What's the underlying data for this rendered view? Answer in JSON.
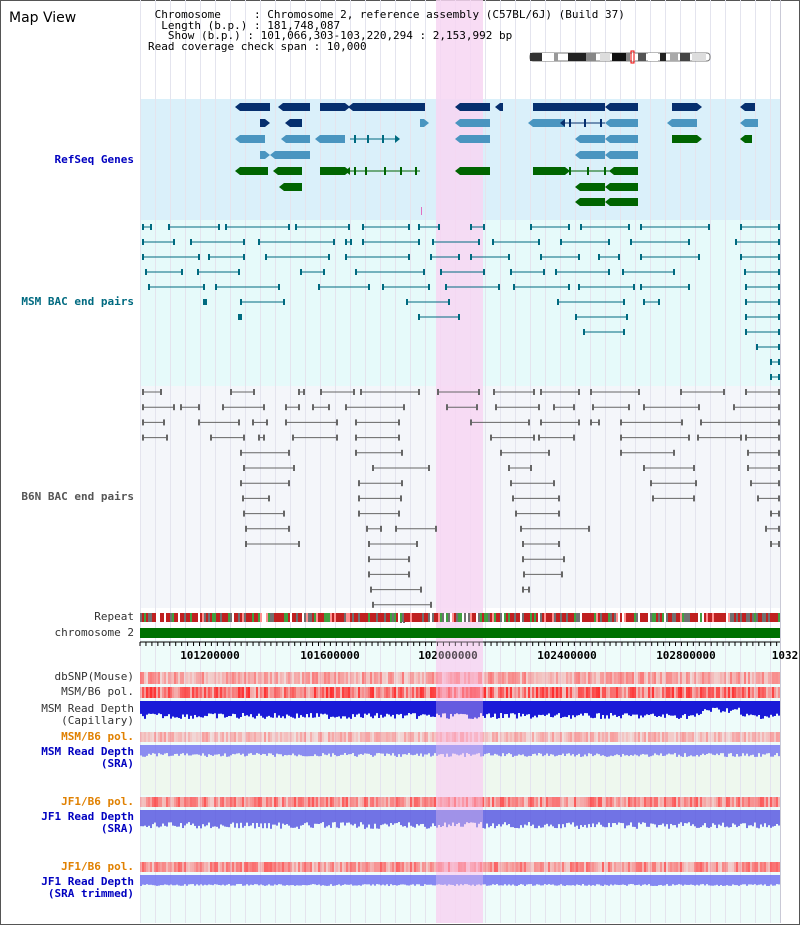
{
  "view": {
    "title": "Map View",
    "info": {
      "chromosome_key": "Chromosome",
      "chromosome_val": "Chromosome 2, reference assembly (C57BL/6J) (Build 37)",
      "length_key": "Length (b.p.)",
      "length_val": "181,748,087",
      "show_key": "Show (b.p.)",
      "show_val": "101,066,303-103,220,294 : 2,153,992 bp",
      "coverage_key": "Read coverage check span",
      "coverage_val": "10,000"
    }
  },
  "tracks": {
    "refseq": "RefSeq Genes",
    "msm_bac": "MSM BAC end pairs",
    "b6n_bac": "B6N BAC end pairs",
    "repeat": "Repeat",
    "chromosome": "chromosome 2",
    "dbsnp": "dbSNP(Mouse)",
    "msm_b6_pol_1": "MSM/B6 pol.",
    "msm_depth_cap_1": "MSM Read Depth",
    "msm_depth_cap_2": "(Capillary)",
    "msm_b6_pol_2": "MSM/B6 pol.",
    "msm_depth_sra_1": "MSM Read Depth",
    "msm_depth_sra_2": "(SRA)",
    "jf1_pol_1": "JF1/B6 pol.",
    "jf1_depth_sra_1": "JF1 Read Depth",
    "jf1_depth_sra_2": "(SRA)",
    "jf1_pol_2": "JF1/B6 pol.",
    "jf1_depth_trim_1": "JF1 Read Depth",
    "jf1_depth_trim_2": "(SRA trimmed)"
  },
  "axis": {
    "ticks": [
      "101200000",
      "101600000",
      "102000000",
      "102400000",
      "102800000",
      "1032"
    ]
  },
  "colors": {
    "refseq_bg": "#daf0fa",
    "msm_bg": "#e6fafa",
    "b6n_bg": "#f4f6fa",
    "highlight": "#f7d6f2",
    "chromosome_bar": "#007000",
    "refseq_dark": "#062f6e",
    "refseq_mid": "#4a95c0",
    "refseq_green": "#006400",
    "msm_line": "#006a80",
    "b6n_line": "#666666",
    "depth_blue": "#1a1ad8",
    "snp_red": "#e83030"
  }
}
